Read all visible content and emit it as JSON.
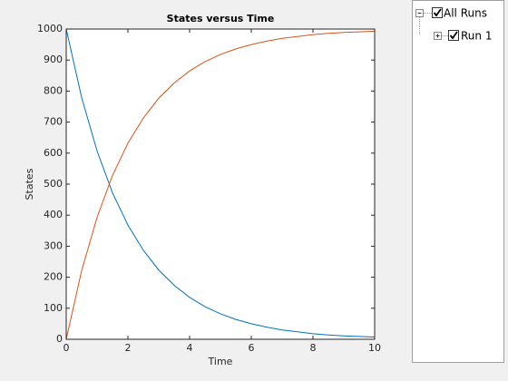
{
  "chart_data": {
    "type": "line",
    "title": "States versus Time",
    "xlabel": "Time",
    "ylabel": "States",
    "x": [
      0,
      0.5,
      1,
      1.5,
      2,
      2.5,
      3,
      3.5,
      4,
      4.5,
      5,
      5.5,
      6,
      6.5,
      7,
      7.5,
      8,
      8.5,
      9,
      9.5,
      10
    ],
    "series": [
      {
        "color": "#0072bd",
        "values": [
          1000,
          779,
          607,
          472,
          368,
          287,
          223,
          174,
          135,
          105,
          82,
          64,
          50,
          39,
          30,
          24,
          18,
          14,
          11,
          9,
          7
        ]
      },
      {
        "color": "#d95319",
        "values": [
          0,
          221,
          393,
          528,
          632,
          713,
          777,
          826,
          865,
          895,
          918,
          936,
          950,
          961,
          970,
          976,
          982,
          986,
          989,
          991,
          993
        ]
      }
    ],
    "xlim": [
      0,
      10
    ],
    "xticks": [
      0,
      2,
      4,
      6,
      8,
      10
    ],
    "ylim": [
      0,
      1000
    ],
    "yticks": [
      0,
      100,
      200,
      300,
      400,
      500,
      600,
      700,
      800,
      900,
      1000
    ],
    "grid": false
  },
  "tree": {
    "items": [
      {
        "label": "All Runs"
      },
      {
        "label": "Run 1"
      }
    ]
  }
}
